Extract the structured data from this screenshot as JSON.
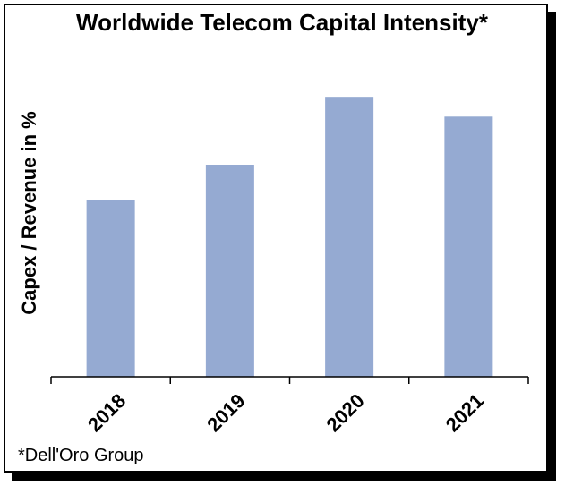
{
  "chart_data": {
    "type": "bar",
    "title": "Worldwide Telecom Capital Intensity*",
    "xlabel": "",
    "ylabel": "Capex / Revenue in %",
    "categories": [
      "2018",
      "2019",
      "2020",
      "2021"
    ],
    "values": [
      62.5,
      75,
      99,
      92
    ],
    "ylim": [
      0,
      100
    ],
    "bar_color": "#95aad2",
    "grid": false,
    "legend": "none"
  },
  "footnote": "*Dell'Oro Group"
}
